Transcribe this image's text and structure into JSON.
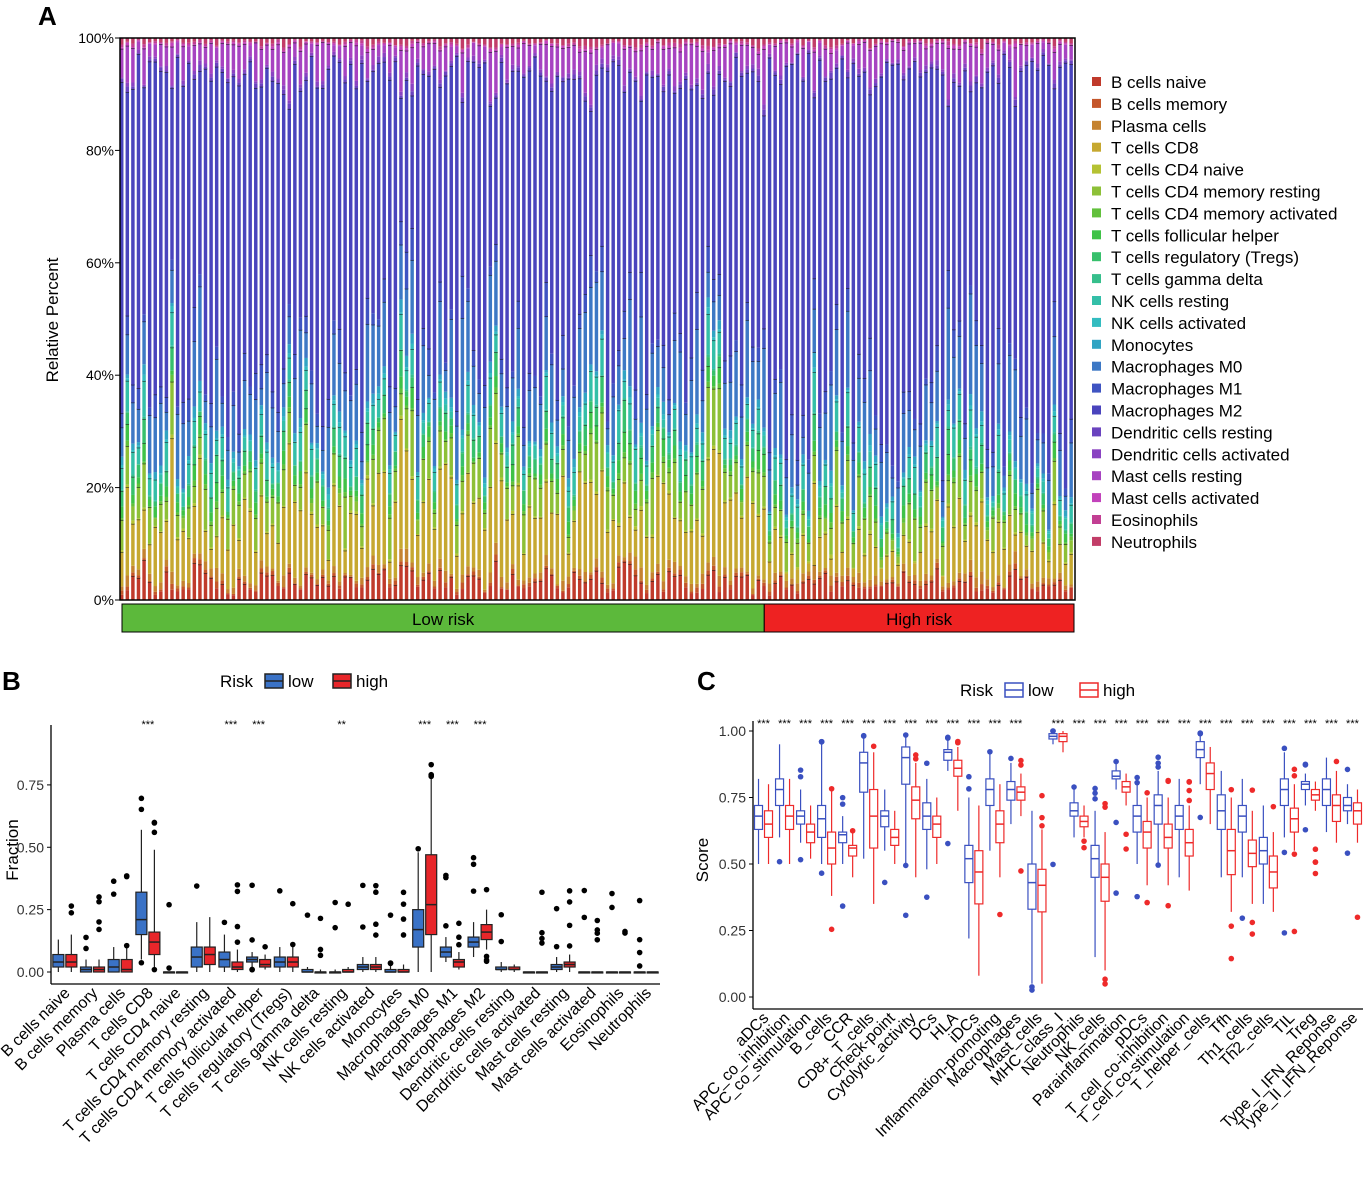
{
  "panelA": {
    "letter": "A",
    "ylabel": "Relative Percent",
    "yticks": [
      "0%",
      "20%",
      "40%",
      "60%",
      "80%",
      "100%"
    ],
    "groups": [
      {
        "label": "Low risk",
        "color": "#5cb93b",
        "samples": 115
      },
      {
        "label": "High risk",
        "color": "#ee2222",
        "samples": 56
      }
    ],
    "legend": [
      {
        "label": "B cells naive",
        "color": "#c03a2b"
      },
      {
        "label": "B cells memory",
        "color": "#c4562a"
      },
      {
        "label": "Plasma cells",
        "color": "#c5822f"
      },
      {
        "label": "T cells CD8",
        "color": "#c6a830"
      },
      {
        "label": "T cells CD4 naive",
        "color": "#b5c233"
      },
      {
        "label": "T cells CD4 memory resting",
        "color": "#8dc037"
      },
      {
        "label": "T cells CD4 memory activated",
        "color": "#62c03c"
      },
      {
        "label": "T cells follicular helper",
        "color": "#3fc247"
      },
      {
        "label": "T cells regulatory (Tregs)",
        "color": "#37c06c"
      },
      {
        "label": "T cells gamma delta",
        "color": "#36bf8c"
      },
      {
        "label": "NK cells resting",
        "color": "#34bfa8"
      },
      {
        "label": "NK cells activated",
        "color": "#33bcc0"
      },
      {
        "label": "Monocytes",
        "color": "#31a4c3"
      },
      {
        "label": "Macrophages M0",
        "color": "#3d78c5"
      },
      {
        "label": "Macrophages M1",
        "color": "#3f54c2"
      },
      {
        "label": "Macrophages M2",
        "color": "#4a44bd"
      },
      {
        "label": "Dendritic cells resting",
        "color": "#6a43bf"
      },
      {
        "label": "Dendritic cells activated",
        "color": "#8a43c2"
      },
      {
        "label": "Mast cells resting",
        "color": "#a743c1"
      },
      {
        "label": "Mast cells activated",
        "color": "#c242bb"
      },
      {
        "label": "Eosinophils",
        "color": "#c23f93"
      },
      {
        "label": "Neutrophils",
        "color": "#c23d68"
      }
    ]
  },
  "panelB": {
    "letter": "B",
    "legend_title": "Risk",
    "legend_items": [
      "low",
      "high"
    ],
    "colors": {
      "low": "#3a72c6",
      "high": "#e8262a"
    },
    "ylabel": "Fraction",
    "yticks": [
      "0.00",
      "0.25",
      "0.50",
      "0.75"
    ]
  },
  "panelC": {
    "letter": "C",
    "legend_title": "Risk",
    "legend_items": [
      "low",
      "high"
    ],
    "colors": {
      "low": "#3a50c0",
      "high": "#ee2a2a"
    },
    "ylabel": "Score",
    "yticks": [
      "0.00",
      "0.25",
      "0.50",
      "0.75",
      "1.00"
    ]
  },
  "chart_data": [
    {
      "type": "bar",
      "stacked": true,
      "title": "A",
      "ylabel": "Relative Percent",
      "ylim": [
        0,
        100
      ],
      "note": "Stacked relative fractions of 22 immune cell types for each sample, grouped into Low risk and High risk"
    },
    {
      "type": "box",
      "title": "B",
      "ylabel": "Fraction",
      "ylim": [
        0,
        0.95
      ],
      "categories": [
        "B cells naive",
        "B cells memory",
        "Plasma cells",
        "T cells CD8",
        "T cells CD4 naive",
        "T cells CD4 memory resting",
        "T cells CD4 memory activated",
        "T cells follicular helper",
        "T cells regulatory (Tregs)",
        "T cells gamma delta",
        "NK cells resting",
        "NK cells activated",
        "Monocytes",
        "Macrophages M0",
        "Macrophages M1",
        "Macrophages M2",
        "Dendritic cells resting",
        "Dendritic cells activated",
        "Mast cells resting",
        "Mast cells activated",
        "Eosinophils",
        "Neutrophils"
      ],
      "significance": [
        "",
        "",
        "",
        "***",
        "",
        "",
        "***",
        "***",
        "",
        "",
        "**",
        "",
        "",
        "***",
        "***",
        "***",
        "",
        "",
        "",
        "",
        "",
        ""
      ],
      "series": [
        {
          "name": "low",
          "boxes": [
            [
              0,
              0.02,
              0.04,
              0.07,
              0.13
            ],
            [
              0,
              0.0,
              0.01,
              0.02,
              0.05
            ],
            [
              0,
              0.0,
              0.02,
              0.05,
              0.1
            ],
            [
              0.05,
              0.15,
              0.21,
              0.32,
              0.57
            ],
            [
              0,
              0,
              0,
              0,
              0
            ],
            [
              0,
              0.02,
              0.06,
              0.1,
              0.2
            ],
            [
              0,
              0.02,
              0.05,
              0.08,
              0.15
            ],
            [
              0.02,
              0.04,
              0.05,
              0.06,
              0.08
            ],
            [
              0,
              0.02,
              0.04,
              0.06,
              0.1
            ],
            [
              0,
              0,
              0,
              0.01,
              0.02
            ],
            [
              0,
              0,
              0,
              0,
              0.01
            ],
            [
              0,
              0.01,
              0.02,
              0.03,
              0.06
            ],
            [
              0,
              0,
              0,
              0.01,
              0.03
            ],
            [
              0,
              0.1,
              0.17,
              0.25,
              0.48
            ],
            [
              0.04,
              0.06,
              0.08,
              0.1,
              0.14
            ],
            [
              0.06,
              0.1,
              0.12,
              0.14,
              0.2
            ],
            [
              0,
              0.01,
              0.01,
              0.02,
              0.04
            ],
            [
              0,
              0,
              0,
              0,
              0
            ],
            [
              0,
              0.01,
              0.02,
              0.03,
              0.06
            ],
            [
              0,
              0,
              0,
              0,
              0
            ],
            [
              0,
              0,
              0,
              0,
              0
            ],
            [
              0,
              0,
              0,
              0,
              0
            ]
          ]
        },
        {
          "name": "high",
          "boxes": [
            [
              0,
              0.02,
              0.04,
              0.07,
              0.15
            ],
            [
              0,
              0,
              0.01,
              0.02,
              0.05
            ],
            [
              0,
              0,
              0.01,
              0.05,
              0.1
            ],
            [
              0.02,
              0.07,
              0.12,
              0.16,
              0.49
            ],
            [
              0,
              0,
              0,
              0,
              0
            ],
            [
              0,
              0.03,
              0.07,
              0.1,
              0.22
            ],
            [
              0,
              0.01,
              0.02,
              0.04,
              0.09
            ],
            [
              0.01,
              0.02,
              0.03,
              0.05,
              0.07
            ],
            [
              0,
              0.02,
              0.04,
              0.06,
              0.11
            ],
            [
              0,
              0,
              0,
              0,
              0.01
            ],
            [
              0,
              0,
              0,
              0.01,
              0.02
            ],
            [
              0,
              0.01,
              0.02,
              0.03,
              0.06
            ],
            [
              0,
              0,
              0,
              0.01,
              0.03
            ],
            [
              0,
              0.15,
              0.27,
              0.47,
              0.78
            ],
            [
              0.01,
              0.02,
              0.04,
              0.05,
              0.08
            ],
            [
              0.09,
              0.13,
              0.16,
              0.19,
              0.25
            ],
            [
              0,
              0.01,
              0.01,
              0.02,
              0.03
            ],
            [
              0,
              0,
              0,
              0,
              0
            ],
            [
              0,
              0.02,
              0.03,
              0.04,
              0.07
            ],
            [
              0,
              0,
              0,
              0,
              0
            ],
            [
              0,
              0,
              0,
              0,
              0
            ],
            [
              0,
              0,
              0,
              0,
              0
            ]
          ]
        }
      ]
    },
    {
      "type": "box",
      "title": "C",
      "ylabel": "Score",
      "ylim": [
        0,
        1.0
      ],
      "categories": [
        "aDCs",
        "APC_co_inhibition",
        "APC_co_stimulation",
        "B_cells",
        "CCR",
        "CD8+_T_cells",
        "Check-point",
        "Cytolytic_activity",
        "DCs",
        "HLA",
        "iDCs",
        "Inflammation-promoting",
        "Macrophages",
        "Mast_cells",
        "MHC_class_I",
        "Neutrophils",
        "NK_cells",
        "Parainflammation",
        "pDCs",
        "T_cell_co-inhibition",
        "T_cell_co-stimulation",
        "T_helper_cells",
        "Tfh",
        "Th1_cells",
        "Th2_cells",
        "TIL",
        "Treg",
        "Type_I_IFN_Reponse",
        "Type_II_IFN_Reponse"
      ],
      "significance": [
        "***",
        "***",
        "***",
        "***",
        "***",
        "***",
        "***",
        "***",
        "***",
        "***",
        "***",
        "***",
        "***",
        "",
        "***",
        "***",
        "***",
        "***",
        "***",
        "***",
        "***",
        "***",
        "***",
        "***",
        "***",
        "***",
        "***",
        "***",
        "***"
      ],
      "series": [
        {
          "name": "low",
          "boxes": [
            [
              0.5,
              0.63,
              0.68,
              0.72,
              0.82
            ],
            [
              0.6,
              0.72,
              0.78,
              0.82,
              0.95
            ],
            [
              0.58,
              0.65,
              0.68,
              0.7,
              0.78
            ],
            [
              0.5,
              0.6,
              0.67,
              0.72,
              0.95
            ],
            [
              0.5,
              0.58,
              0.61,
              0.62,
              0.68
            ],
            [
              0.52,
              0.77,
              0.88,
              0.92,
              0.98
            ],
            [
              0.55,
              0.64,
              0.68,
              0.7,
              0.78
            ],
            [
              0.5,
              0.8,
              0.9,
              0.94,
              0.98
            ],
            [
              0.48,
              0.63,
              0.68,
              0.73,
              0.82
            ],
            [
              0.85,
              0.89,
              0.92,
              0.93,
              0.97
            ],
            [
              0.22,
              0.43,
              0.52,
              0.57,
              0.75
            ],
            [
              0.55,
              0.72,
              0.78,
              0.82,
              0.92
            ],
            [
              0.65,
              0.74,
              0.78,
              0.81,
              0.88
            ],
            [
              0.05,
              0.33,
              0.43,
              0.5,
              0.7
            ],
            [
              0.95,
              0.97,
              0.98,
              0.99,
              1.0
            ],
            [
              0.6,
              0.68,
              0.7,
              0.73,
              0.78
            ],
            [
              0.15,
              0.45,
              0.52,
              0.57,
              0.7
            ],
            [
              0.78,
              0.82,
              0.83,
              0.85,
              0.88
            ],
            [
              0.5,
              0.62,
              0.68,
              0.72,
              0.8
            ],
            [
              0.5,
              0.65,
              0.72,
              0.76,
              0.85
            ],
            [
              0.45,
              0.63,
              0.68,
              0.72,
              0.82
            ],
            [
              0.8,
              0.9,
              0.93,
              0.96,
              0.99
            ],
            [
              0.45,
              0.63,
              0.7,
              0.76,
              0.85
            ],
            [
              0.45,
              0.62,
              0.68,
              0.72,
              0.82
            ],
            [
              0.35,
              0.5,
              0.55,
              0.6,
              0.72
            ],
            [
              0.6,
              0.72,
              0.78,
              0.82,
              0.92
            ],
            [
              0.72,
              0.78,
              0.8,
              0.81,
              0.84
            ],
            [
              0.62,
              0.72,
              0.78,
              0.82,
              0.9
            ],
            [
              0.65,
              0.7,
              0.72,
              0.75,
              0.8
            ]
          ]
        },
        {
          "name": "high",
          "boxes": [
            [
              0.5,
              0.6,
              0.65,
              0.7,
              0.8
            ],
            [
              0.5,
              0.63,
              0.68,
              0.72,
              0.82
            ],
            [
              0.52,
              0.58,
              0.62,
              0.65,
              0.72
            ],
            [
              0.38,
              0.5,
              0.56,
              0.62,
              0.78
            ],
            [
              0.45,
              0.53,
              0.56,
              0.57,
              0.62
            ],
            [
              0.35,
              0.56,
              0.68,
              0.78,
              0.92
            ],
            [
              0.5,
              0.57,
              0.6,
              0.63,
              0.7
            ],
            [
              0.45,
              0.67,
              0.74,
              0.79,
              0.88
            ],
            [
              0.5,
              0.6,
              0.65,
              0.68,
              0.75
            ],
            [
              0.7,
              0.83,
              0.86,
              0.89,
              0.94
            ],
            [
              0.08,
              0.35,
              0.47,
              0.55,
              0.72
            ],
            [
              0.45,
              0.58,
              0.65,
              0.7,
              0.8
            ],
            [
              0.68,
              0.74,
              0.77,
              0.79,
              0.84
            ],
            [
              0.05,
              0.32,
              0.42,
              0.48,
              0.63
            ],
            [
              0.92,
              0.96,
              0.98,
              0.99,
              1.0
            ],
            [
              0.6,
              0.64,
              0.66,
              0.68,
              0.72
            ],
            [
              0.1,
              0.36,
              0.45,
              0.5,
              0.62
            ],
            [
              0.72,
              0.77,
              0.79,
              0.81,
              0.84
            ],
            [
              0.42,
              0.56,
              0.62,
              0.66,
              0.75
            ],
            [
              0.42,
              0.56,
              0.6,
              0.65,
              0.75
            ],
            [
              0.4,
              0.53,
              0.58,
              0.63,
              0.72
            ],
            [
              0.65,
              0.78,
              0.84,
              0.88,
              0.94
            ],
            [
              0.32,
              0.46,
              0.55,
              0.63,
              0.75
            ],
            [
              0.35,
              0.49,
              0.54,
              0.59,
              0.7
            ],
            [
              0.32,
              0.41,
              0.47,
              0.53,
              0.62
            ],
            [
              0.55,
              0.62,
              0.67,
              0.71,
              0.8
            ],
            [
              0.7,
              0.74,
              0.76,
              0.78,
              0.81
            ],
            [
              0.58,
              0.66,
              0.72,
              0.76,
              0.85
            ],
            [
              0.58,
              0.65,
              0.7,
              0.73,
              0.78
            ]
          ]
        }
      ]
    }
  ]
}
